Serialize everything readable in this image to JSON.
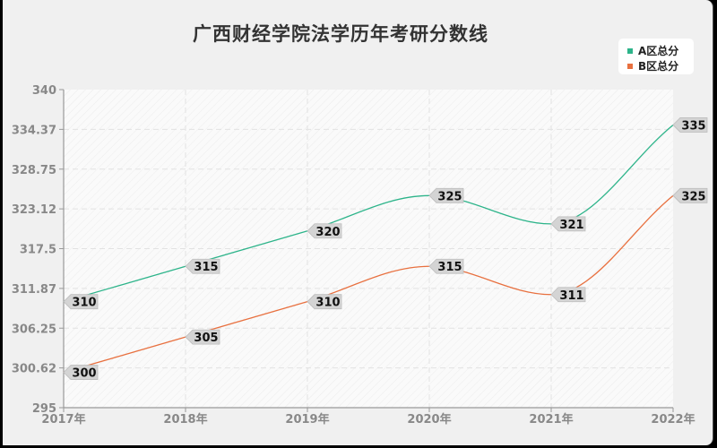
{
  "chart_data": {
    "type": "line",
    "title": "广西财经学院法学历年考研分数线",
    "xlabel": "",
    "ylabel": "",
    "categories": [
      "2017年",
      "2018年",
      "2019年",
      "2020年",
      "2021年",
      "2022年"
    ],
    "series": [
      {
        "name": "A区总分",
        "color": "#2db48a",
        "values": [
          310,
          315,
          320,
          325,
          321,
          335
        ]
      },
      {
        "name": "B区总分",
        "color": "#e8703f",
        "values": [
          300,
          305,
          310,
          315,
          311,
          325
        ]
      }
    ],
    "ylim": [
      295,
      340
    ],
    "yticks": [
      "340",
      "334.37",
      "328.75",
      "323.12",
      "317.5",
      "311.87",
      "306.25",
      "300.62",
      "295"
    ],
    "grid": true,
    "legend_position": "top-right",
    "smooth": true,
    "data_labels": true
  },
  "legend": {
    "items": [
      {
        "label": "A区总分",
        "color": "#2db48a"
      },
      {
        "label": "B区总分",
        "color": "#e8703f"
      }
    ]
  }
}
